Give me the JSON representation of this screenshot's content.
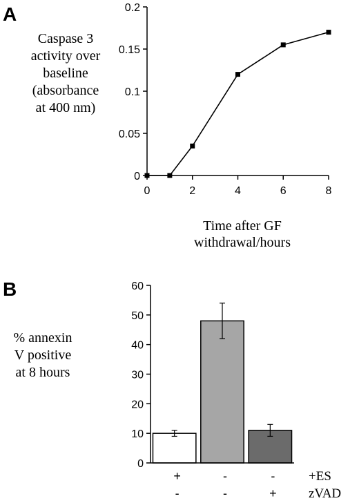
{
  "chart_data": [
    {
      "panel": "A",
      "type": "line",
      "ylabel_lines": [
        "Caspase 3",
        "activity over",
        "baseline",
        "(absorbance",
        "at 400 nm)"
      ],
      "xlabel_lines": [
        "Time after GF",
        "withdrawal/hours"
      ],
      "x": [
        0,
        1,
        2,
        4,
        6,
        8
      ],
      "y": [
        0,
        0,
        0.035,
        0.12,
        0.155,
        0.17
      ],
      "xlim": [
        0,
        8
      ],
      "ylim": [
        0,
        0.2
      ],
      "xticks": [
        "0",
        "2",
        "4",
        "6",
        "8"
      ],
      "yticks": [
        "0",
        "0.05",
        "0.1",
        "0.15",
        "0.2"
      ],
      "grid": false
    },
    {
      "panel": "B",
      "type": "bar",
      "ylabel_lines": [
        "% annexin",
        "V positive",
        "at 8 hours"
      ],
      "values": [
        10,
        48,
        11
      ],
      "errors": [
        1,
        6,
        2
      ],
      "bar_colors": [
        "#ffffff",
        "#a6a6a6",
        "#6b6b6b"
      ],
      "ylim": [
        0,
        60
      ],
      "yticks": [
        "0",
        "10",
        "20",
        "30",
        "40",
        "50",
        "60"
      ],
      "conditions": [
        {
          "name": "+ES",
          "signs": [
            "+",
            "-",
            "-"
          ]
        },
        {
          "name": "zVAD",
          "signs": [
            "-",
            "-",
            "+"
          ]
        }
      ],
      "grid": false
    }
  ]
}
